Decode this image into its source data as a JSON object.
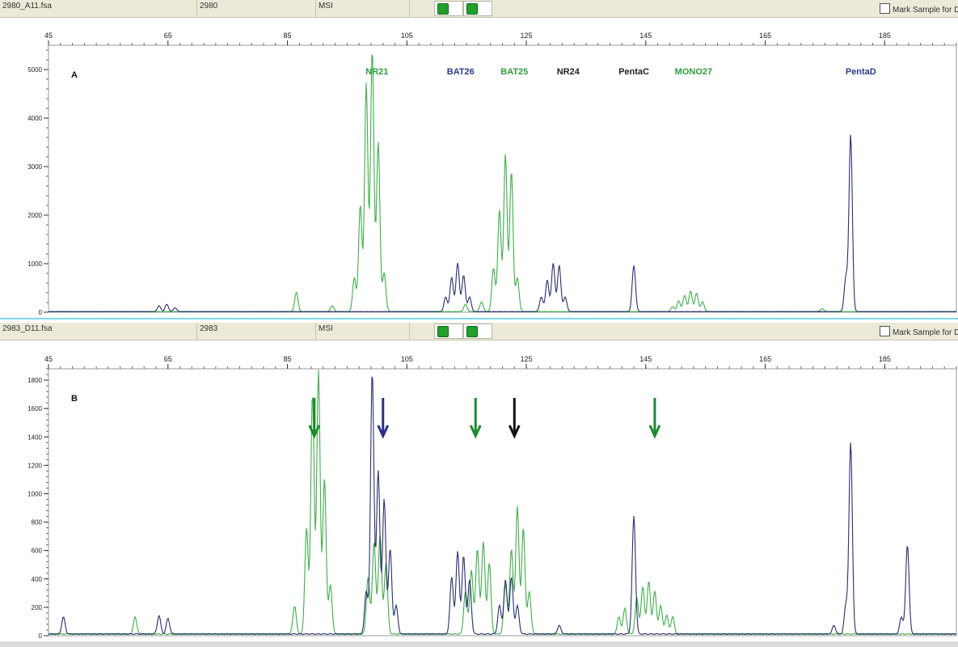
{
  "panels": [
    {
      "header": {
        "file": "2980_A11.fsa",
        "sample": "2980",
        "panel": "MSI",
        "mark_label": "Mark Sample for D"
      },
      "label": "A",
      "x_ticks": [
        45,
        65,
        85,
        105,
        125,
        145,
        165,
        185
      ],
      "y_ticks": [
        0,
        1000,
        2000,
        3000,
        4000,
        5000
      ],
      "xlim": [
        45,
        197
      ],
      "ylim": [
        0,
        5500
      ],
      "markers": [
        {
          "name": "NR21",
          "x": 100,
          "color": "#2e9e3e"
        },
        {
          "name": "BAT26",
          "x": 114,
          "color": "#2f3a8f"
        },
        {
          "name": "BAT25",
          "x": 123,
          "color": "#2e9e3e"
        },
        {
          "name": "NR24",
          "x": 132,
          "color": "#222222"
        },
        {
          "name": "PentaC",
          "x": 143,
          "color": "#222222"
        },
        {
          "name": "MONO27",
          "x": 153,
          "color": "#2e9e3e"
        },
        {
          "name": "PentaD",
          "x": 181,
          "color": "#2f3a8f"
        }
      ],
      "arrows": []
    },
    {
      "header": {
        "file": "2983_D11.fsa",
        "sample": "2983",
        "panel": "MSI",
        "mark_label": "Mark Sample for D"
      },
      "label": "B",
      "x_ticks": [
        45,
        65,
        85,
        105,
        125,
        145,
        165,
        185
      ],
      "y_ticks": [
        0,
        200,
        400,
        600,
        800,
        1000,
        1200,
        1400,
        1600,
        1800
      ],
      "xlim": [
        45,
        197
      ],
      "ylim": [
        0,
        1880
      ],
      "markers": [],
      "arrows": [
        {
          "x": 89.5,
          "color": "#1e8a2e"
        },
        {
          "x": 101,
          "color": "#2a2f8c"
        },
        {
          "x": 116.5,
          "color": "#1e8a2e"
        },
        {
          "x": 123,
          "color": "#111111"
        },
        {
          "x": 146.5,
          "color": "#1e8a2e"
        }
      ]
    }
  ],
  "chart_data": [
    {
      "type": "line",
      "panel": "A",
      "xlim": [
        45,
        197
      ],
      "ylim": [
        0,
        5500
      ],
      "series": [
        {
          "name": "",
          "color": "#3fae4a",
          "peaks": [
            {
              "x": 86.5,
              "y": 400
            },
            {
              "x": 92.5,
              "y": 120
            },
            {
              "x": 96.2,
              "y": 700
            },
            {
              "x": 97.2,
              "y": 2200
            },
            {
              "x": 98.2,
              "y": 4700
            },
            {
              "x": 99.2,
              "y": 5400
            },
            {
              "x": 100.2,
              "y": 3500
            },
            {
              "x": 101.2,
              "y": 800
            },
            {
              "x": 114.8,
              "y": 150
            },
            {
              "x": 117.5,
              "y": 200
            },
            {
              "x": 119.5,
              "y": 900
            },
            {
              "x": 120.5,
              "y": 2100
            },
            {
              "x": 121.5,
              "y": 3250
            },
            {
              "x": 122.5,
              "y": 2900
            },
            {
              "x": 123.5,
              "y": 700
            },
            {
              "x": 149.5,
              "y": 100
            },
            {
              "x": 150.5,
              "y": 220
            },
            {
              "x": 151.5,
              "y": 330
            },
            {
              "x": 152.5,
              "y": 420
            },
            {
              "x": 153.5,
              "y": 380
            },
            {
              "x": 154.5,
              "y": 200
            },
            {
              "x": 174.5,
              "y": 60
            }
          ]
        },
        {
          "name": "",
          "color": "#2a2f6e",
          "peaks": [
            {
              "x": 63.5,
              "y": 120
            },
            {
              "x": 64.8,
              "y": 150
            },
            {
              "x": 66.2,
              "y": 80
            },
            {
              "x": 111.5,
              "y": 300
            },
            {
              "x": 112.5,
              "y": 700
            },
            {
              "x": 113.5,
              "y": 1000
            },
            {
              "x": 114.5,
              "y": 750
            },
            {
              "x": 115.5,
              "y": 300
            },
            {
              "x": 127.5,
              "y": 300
            },
            {
              "x": 128.5,
              "y": 650
            },
            {
              "x": 129.5,
              "y": 1000
            },
            {
              "x": 130.5,
              "y": 950
            },
            {
              "x": 131.5,
              "y": 300
            },
            {
              "x": 143,
              "y": 950
            },
            {
              "x": 178.5,
              "y": 700
            },
            {
              "x": 179.3,
              "y": 3650
            }
          ]
        }
      ]
    },
    {
      "type": "line",
      "panel": "B",
      "xlim": [
        45,
        197
      ],
      "ylim": [
        0,
        1880
      ],
      "series": [
        {
          "name": "",
          "color": "#3fae4a",
          "peaks": [
            {
              "x": 59.5,
              "y": 120
            },
            {
              "x": 86.2,
              "y": 200
            },
            {
              "x": 88.2,
              "y": 750
            },
            {
              "x": 89.2,
              "y": 1700
            },
            {
              "x": 90.2,
              "y": 1860
            },
            {
              "x": 91.2,
              "y": 1100
            },
            {
              "x": 92.2,
              "y": 350
            },
            {
              "x": 98.5,
              "y": 400
            },
            {
              "x": 99.5,
              "y": 650
            },
            {
              "x": 100.5,
              "y": 700
            },
            {
              "x": 101.5,
              "y": 500
            },
            {
              "x": 114.8,
              "y": 300
            },
            {
              "x": 115.8,
              "y": 450
            },
            {
              "x": 116.8,
              "y": 600
            },
            {
              "x": 117.8,
              "y": 650
            },
            {
              "x": 118.8,
              "y": 500
            },
            {
              "x": 121.5,
              "y": 350
            },
            {
              "x": 122.5,
              "y": 600
            },
            {
              "x": 123.5,
              "y": 900
            },
            {
              "x": 124.5,
              "y": 750
            },
            {
              "x": 125.5,
              "y": 300
            },
            {
              "x": 140.5,
              "y": 120
            },
            {
              "x": 141.5,
              "y": 180
            },
            {
              "x": 143.5,
              "y": 250
            },
            {
              "x": 144.5,
              "y": 330
            },
            {
              "x": 145.5,
              "y": 370
            },
            {
              "x": 146.5,
              "y": 300
            },
            {
              "x": 147.5,
              "y": 200
            },
            {
              "x": 148.5,
              "y": 130
            },
            {
              "x": 149.5,
              "y": 120
            }
          ]
        },
        {
          "name": "",
          "color": "#2a2f6e",
          "peaks": [
            {
              "x": 47.5,
              "y": 120
            },
            {
              "x": 63.5,
              "y": 130
            },
            {
              "x": 65,
              "y": 110
            },
            {
              "x": 98.2,
              "y": 300
            },
            {
              "x": 99.2,
              "y": 1850
            },
            {
              "x": 100.2,
              "y": 1150
            },
            {
              "x": 101.2,
              "y": 950
            },
            {
              "x": 102.2,
              "y": 600
            },
            {
              "x": 103.2,
              "y": 200
            },
            {
              "x": 112.5,
              "y": 400
            },
            {
              "x": 113.5,
              "y": 580
            },
            {
              "x": 114.5,
              "y": 550
            },
            {
              "x": 115.5,
              "y": 380
            },
            {
              "x": 120.5,
              "y": 200
            },
            {
              "x": 121.5,
              "y": 380
            },
            {
              "x": 122.5,
              "y": 400
            },
            {
              "x": 123.5,
              "y": 200
            },
            {
              "x": 130.5,
              "y": 60
            },
            {
              "x": 143,
              "y": 830
            },
            {
              "x": 176.5,
              "y": 60
            },
            {
              "x": 178.5,
              "y": 200
            },
            {
              "x": 179.3,
              "y": 1350
            },
            {
              "x": 187.8,
              "y": 120
            },
            {
              "x": 188.8,
              "y": 630
            }
          ]
        }
      ]
    }
  ]
}
